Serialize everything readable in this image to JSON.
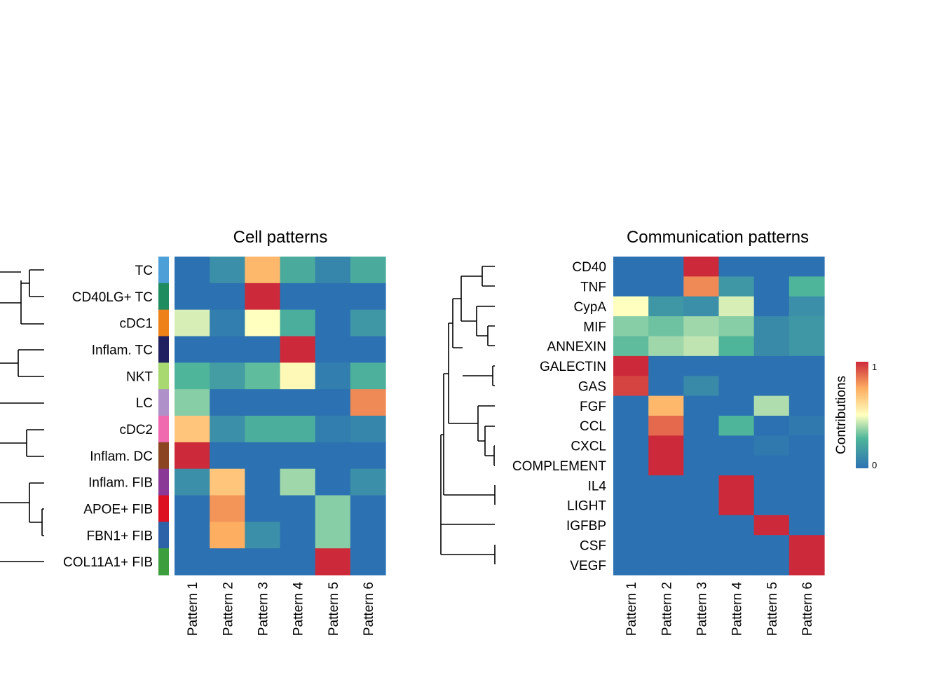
{
  "chart_data": [
    {
      "type": "heatmap",
      "title": "Cell patterns",
      "columns": [
        "Pattern 1",
        "Pattern 2",
        "Pattern 3",
        "Pattern 4",
        "Pattern 5",
        "Pattern 6"
      ],
      "rows": [
        "TC",
        "CD40LG+ TC",
        "cDC1",
        "Inflam. TC",
        "NKT",
        "LC",
        "cDC2",
        "Inflam. DC",
        "Inflam. FIB",
        "APOE+ FIB",
        "FBN1+ FIB",
        "COL11A1+ FIB"
      ],
      "row_colors": [
        "#4d9fd8",
        "#1f8c5f",
        "#ee8218",
        "#202060",
        "#a8d870",
        "#b090c8",
        "#f06ab0",
        "#8b4520",
        "#8a3a96",
        "#dc1020",
        "#2e62a8",
        "#3c9e3c"
      ],
      "values": [
        [
          0.0,
          0.12,
          0.72,
          0.24,
          0.08,
          0.24
        ],
        [
          0.0,
          0.0,
          1.0,
          0.0,
          0.0,
          0.0
        ],
        [
          0.45,
          0.05,
          0.5,
          0.25,
          0.0,
          0.15
        ],
        [
          0.0,
          0.0,
          0.0,
          1.0,
          0.0,
          0.0
        ],
        [
          0.28,
          0.18,
          0.3,
          0.52,
          0.05,
          0.26
        ],
        [
          0.35,
          0.0,
          0.0,
          0.0,
          0.0,
          0.82
        ],
        [
          0.68,
          0.12,
          0.25,
          0.25,
          0.05,
          0.08
        ],
        [
          1.0,
          0.0,
          0.0,
          0.0,
          0.0,
          0.0
        ],
        [
          0.12,
          0.68,
          0.0,
          0.38,
          0.0,
          0.12
        ],
        [
          0.0,
          0.8,
          0.0,
          0.0,
          0.35,
          0.0
        ],
        [
          0.0,
          0.75,
          0.12,
          0.0,
          0.35,
          0.0
        ],
        [
          0.0,
          0.0,
          0.0,
          0.0,
          1.0,
          0.0
        ]
      ]
    },
    {
      "type": "heatmap",
      "title": "Communication patterns",
      "columns": [
        "Pattern 1",
        "Pattern 2",
        "Pattern 3",
        "Pattern 4",
        "Pattern 5",
        "Pattern 6"
      ],
      "rows": [
        "CD40",
        "TNF",
        "CypA",
        "MIF",
        "ANNEXIN",
        "GALECTIN",
        "GAS",
        "FGF",
        "CCL",
        "CXCL",
        "COMPLEMENT",
        "IL4",
        "LIGHT",
        "IGFBP",
        "CSF",
        "VEGF"
      ],
      "values": [
        [
          0.0,
          0.0,
          1.0,
          0.0,
          0.0,
          0.0
        ],
        [
          0.0,
          0.0,
          0.82,
          0.15,
          0.0,
          0.28
        ],
        [
          0.5,
          0.15,
          0.12,
          0.45,
          0.0,
          0.12
        ],
        [
          0.35,
          0.32,
          0.38,
          0.35,
          0.1,
          0.15
        ],
        [
          0.3,
          0.38,
          0.42,
          0.28,
          0.1,
          0.15
        ],
        [
          1.0,
          0.0,
          0.0,
          0.0,
          0.0,
          0.0
        ],
        [
          0.95,
          0.0,
          0.1,
          0.0,
          0.0,
          0.0
        ],
        [
          0.0,
          0.72,
          0.0,
          0.0,
          0.4,
          0.0
        ],
        [
          0.0,
          0.88,
          0.0,
          0.28,
          0.0,
          0.03
        ],
        [
          0.0,
          1.0,
          0.0,
          0.0,
          0.03,
          0.0
        ],
        [
          0.0,
          1.0,
          0.0,
          0.0,
          0.0,
          0.0
        ],
        [
          0.0,
          0.0,
          0.0,
          1.0,
          0.0,
          0.0
        ],
        [
          0.0,
          0.0,
          0.0,
          1.0,
          0.0,
          0.0
        ],
        [
          0.0,
          0.0,
          0.0,
          0.0,
          1.0,
          0.0
        ],
        [
          0.0,
          0.0,
          0.0,
          0.0,
          0.0,
          1.0
        ],
        [
          0.0,
          0.0,
          0.0,
          0.0,
          0.0,
          1.0
        ]
      ]
    }
  ],
  "legend": {
    "title": "Contributions",
    "max_label": "1",
    "min_label": "0",
    "colors": [
      "#2c72b2",
      "#4fb59a",
      "#ffffbf",
      "#fdae61",
      "#cc2a3a"
    ]
  }
}
